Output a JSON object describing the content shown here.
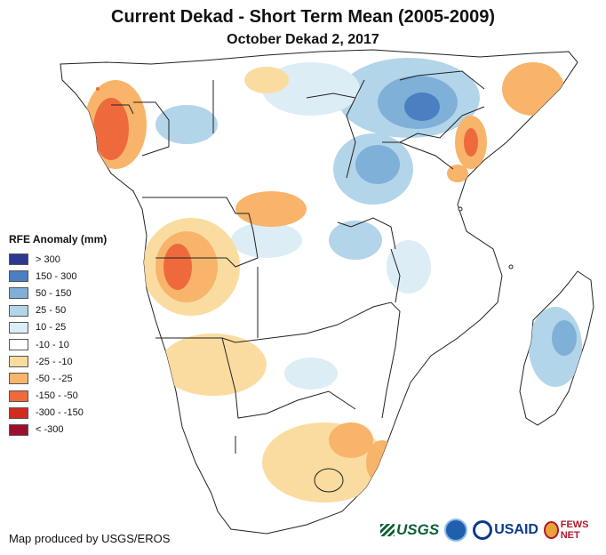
{
  "title": "Current Dekad - Short Term Mean (2005-2009)",
  "subtitle": "October Dekad 2, 2017",
  "legend": {
    "title": "RFE Anomaly (mm)",
    "items": [
      {
        "label": "> 300",
        "color": "#2b3990"
      },
      {
        "label": "150 - 300",
        "color": "#4a7fc1"
      },
      {
        "label": "50 - 150",
        "color": "#7fb0d8"
      },
      {
        "label": "25 - 50",
        "color": "#b3d5ea"
      },
      {
        "label": "10 - 25",
        "color": "#dcedf6"
      },
      {
        "label": "-10 - 10",
        "color": "#ffffff"
      },
      {
        "label": "-25 - -10",
        "color": "#fbdca0"
      },
      {
        "label": "-50 - -25",
        "color": "#f7b46a"
      },
      {
        "label": "-150 - -50",
        "color": "#ee6a3c"
      },
      {
        "label": "-300 - -150",
        "color": "#d22b1f"
      },
      {
        "label": "< -300",
        "color": "#9e0f2e"
      }
    ]
  },
  "credit": "Map produced by USGS/EROS",
  "logos": {
    "usgs": "USGS",
    "usaid": "USAID",
    "fews": "FEWS NET"
  }
}
